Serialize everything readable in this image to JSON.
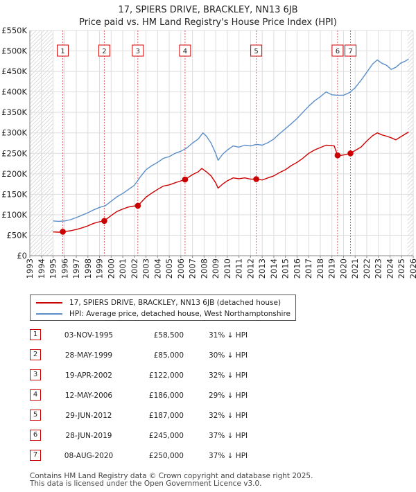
{
  "header": {
    "title_line1": "17, SPIERS DRIVE, BRACKLEY, NN13 6JB",
    "title_line2": "Price paid vs. HM Land Registry's House Price Index (HPI)"
  },
  "chart_data": {
    "type": "line",
    "x_range": [
      1993,
      2026
    ],
    "ylim": [
      0,
      550000
    ],
    "y_ticks": [
      {
        "value": 0,
        "label": "£0"
      },
      {
        "value": 50000,
        "label": "£50K"
      },
      {
        "value": 100000,
        "label": "£100K"
      },
      {
        "value": 150000,
        "label": "£150K"
      },
      {
        "value": 200000,
        "label": "£200K"
      },
      {
        "value": 250000,
        "label": "£250K"
      },
      {
        "value": 300000,
        "label": "£300K"
      },
      {
        "value": 350000,
        "label": "£350K"
      },
      {
        "value": 400000,
        "label": "£400K"
      },
      {
        "value": 450000,
        "label": "£450K"
      },
      {
        "value": 500000,
        "label": "£500K"
      },
      {
        "value": 550000,
        "label": "£550K"
      }
    ],
    "x_ticks": [
      "1993",
      "1994",
      "1995",
      "1996",
      "1997",
      "1998",
      "1999",
      "2000",
      "2001",
      "2002",
      "2003",
      "2004",
      "2005",
      "2006",
      "2007",
      "2008",
      "2009",
      "2010",
      "2011",
      "2012",
      "2013",
      "2014",
      "2015",
      "2016",
      "2017",
      "2018",
      "2019",
      "2020",
      "2021",
      "2022",
      "2023",
      "2024",
      "2025",
      "2026"
    ],
    "hatch_before": 1995.0,
    "hatch_after": 2025.5,
    "series": [
      {
        "name": "17, SPIERS DRIVE, BRACKLEY, NN13 6JB (detached house)",
        "color": "#cc0000",
        "points": [
          [
            1995.0,
            58000
          ],
          [
            1995.5,
            57500
          ],
          [
            1995.84,
            58500
          ],
          [
            1996.5,
            61000
          ],
          [
            1997,
            64000
          ],
          [
            1997.5,
            68000
          ],
          [
            1998,
            73000
          ],
          [
            1998.5,
            79000
          ],
          [
            1999.0,
            83000
          ],
          [
            1999.4,
            85000
          ],
          [
            2000,
            98000
          ],
          [
            2000.5,
            108000
          ],
          [
            2001,
            114000
          ],
          [
            2001.5,
            119000
          ],
          [
            2001.9,
            121000
          ],
          [
            2002.3,
            122000
          ],
          [
            2003,
            143000
          ],
          [
            2003.5,
            153000
          ],
          [
            2004,
            162000
          ],
          [
            2004.5,
            170000
          ],
          [
            2005,
            173000
          ],
          [
            2005.5,
            178000
          ],
          [
            2006.36,
            186000
          ],
          [
            2007,
            198000
          ],
          [
            2007.5,
            205000
          ],
          [
            2007.8,
            213000
          ],
          [
            2008.2,
            205000
          ],
          [
            2008.6,
            195000
          ],
          [
            2009.0,
            178000
          ],
          [
            2009.2,
            165000
          ],
          [
            2009.6,
            175000
          ],
          [
            2010,
            183000
          ],
          [
            2010.5,
            190000
          ],
          [
            2011,
            188000
          ],
          [
            2011.5,
            190000
          ],
          [
            2012,
            187000
          ],
          [
            2012.49,
            187000
          ],
          [
            2013,
            185000
          ],
          [
            2013.5,
            190000
          ],
          [
            2014,
            195000
          ],
          [
            2014.5,
            203000
          ],
          [
            2015,
            210000
          ],
          [
            2015.5,
            220000
          ],
          [
            2016,
            228000
          ],
          [
            2016.5,
            238000
          ],
          [
            2017,
            250000
          ],
          [
            2017.5,
            258000
          ],
          [
            2018,
            264000
          ],
          [
            2018.5,
            270000
          ],
          [
            2019.2,
            268000
          ],
          [
            2019.49,
            245000
          ],
          [
            2019.8,
            245000
          ],
          [
            2020.2,
            247000
          ],
          [
            2020.6,
            250000
          ],
          [
            2021,
            257000
          ],
          [
            2021.5,
            265000
          ],
          [
            2022,
            280000
          ],
          [
            2022.5,
            293000
          ],
          [
            2022.9,
            300000
          ],
          [
            2023.3,
            295000
          ],
          [
            2023.7,
            292000
          ],
          [
            2024.1,
            288000
          ],
          [
            2024.5,
            283000
          ],
          [
            2024.9,
            290000
          ],
          [
            2025.3,
            297000
          ],
          [
            2025.6,
            302000
          ]
        ]
      },
      {
        "name": "HPI: Average price, detached house, West Northamptonshire",
        "color": "#5b8ec9",
        "points": [
          [
            1995.0,
            85000
          ],
          [
            1995.5,
            84000
          ],
          [
            1996,
            85000
          ],
          [
            1996.5,
            88000
          ],
          [
            1997,
            93000
          ],
          [
            1997.5,
            99000
          ],
          [
            1998,
            105000
          ],
          [
            1998.5,
            112000
          ],
          [
            1999,
            118000
          ],
          [
            1999.5,
            122000
          ],
          [
            2000,
            133000
          ],
          [
            2000.5,
            144000
          ],
          [
            2001,
            152000
          ],
          [
            2001.5,
            162000
          ],
          [
            2002,
            172000
          ],
          [
            2002.5,
            192000
          ],
          [
            2003,
            210000
          ],
          [
            2003.5,
            220000
          ],
          [
            2004,
            228000
          ],
          [
            2004.5,
            238000
          ],
          [
            2005,
            242000
          ],
          [
            2005.5,
            250000
          ],
          [
            2006,
            255000
          ],
          [
            2006.5,
            263000
          ],
          [
            2007,
            275000
          ],
          [
            2007.5,
            285000
          ],
          [
            2007.9,
            300000
          ],
          [
            2008.2,
            292000
          ],
          [
            2008.6,
            275000
          ],
          [
            2009.0,
            250000
          ],
          [
            2009.2,
            233000
          ],
          [
            2009.6,
            248000
          ],
          [
            2010,
            258000
          ],
          [
            2010.5,
            268000
          ],
          [
            2011,
            265000
          ],
          [
            2011.5,
            270000
          ],
          [
            2012,
            268000
          ],
          [
            2012.5,
            272000
          ],
          [
            2013,
            270000
          ],
          [
            2013.5,
            276000
          ],
          [
            2014,
            285000
          ],
          [
            2014.5,
            298000
          ],
          [
            2015,
            310000
          ],
          [
            2015.5,
            322000
          ],
          [
            2016,
            335000
          ],
          [
            2016.5,
            350000
          ],
          [
            2017,
            365000
          ],
          [
            2017.5,
            378000
          ],
          [
            2018,
            388000
          ],
          [
            2018.5,
            400000
          ],
          [
            2019,
            393000
          ],
          [
            2019.5,
            392000
          ],
          [
            2020,
            392000
          ],
          [
            2020.5,
            398000
          ],
          [
            2021,
            410000
          ],
          [
            2021.5,
            428000
          ],
          [
            2022,
            448000
          ],
          [
            2022.5,
            468000
          ],
          [
            2022.9,
            478000
          ],
          [
            2023.3,
            470000
          ],
          [
            2023.7,
            465000
          ],
          [
            2024.1,
            455000
          ],
          [
            2024.5,
            460000
          ],
          [
            2024.9,
            470000
          ],
          [
            2025.3,
            475000
          ],
          [
            2025.6,
            480000
          ]
        ]
      }
    ],
    "sale_markers": [
      {
        "n": "1",
        "x": 1995.84,
        "y": 58500
      },
      {
        "n": "2",
        "x": 1999.41,
        "y": 85000
      },
      {
        "n": "3",
        "x": 2002.3,
        "y": 122000
      },
      {
        "n": "4",
        "x": 2006.36,
        "y": 186000
      },
      {
        "n": "5",
        "x": 2012.49,
        "y": 187000
      },
      {
        "n": "6",
        "x": 2019.49,
        "y": 245000
      },
      {
        "n": "7",
        "x": 2020.6,
        "y": 250000
      }
    ]
  },
  "legend": {
    "items": [
      {
        "label": "17, SPIERS DRIVE, BRACKLEY, NN13 6JB (detached house)",
        "color": "#cc0000"
      },
      {
        "label": "HPI: Average price, detached house, West Northamptonshire",
        "color": "#5b8ec9"
      }
    ]
  },
  "sales": [
    {
      "n": "1",
      "date": "03-NOV-1995",
      "price": "£58,500",
      "hpi": "31% ↓ HPI"
    },
    {
      "n": "2",
      "date": "28-MAY-1999",
      "price": "£85,000",
      "hpi": "30% ↓ HPI"
    },
    {
      "n": "3",
      "date": "19-APR-2002",
      "price": "£122,000",
      "hpi": "32% ↓ HPI"
    },
    {
      "n": "4",
      "date": "12-MAY-2006",
      "price": "£186,000",
      "hpi": "29% ↓ HPI"
    },
    {
      "n": "5",
      "date": "29-JUN-2012",
      "price": "£187,000",
      "hpi": "32% ↓ HPI"
    },
    {
      "n": "6",
      "date": "28-JUN-2019",
      "price": "£245,000",
      "hpi": "37% ↓ HPI"
    },
    {
      "n": "7",
      "date": "08-AUG-2020",
      "price": "£250,000",
      "hpi": "37% ↓ HPI"
    }
  ],
  "footer": {
    "line1": "Contains HM Land Registry data © Crown copyright and database right 2025.",
    "line2": "This data is licensed under the Open Government Licence v3.0."
  }
}
